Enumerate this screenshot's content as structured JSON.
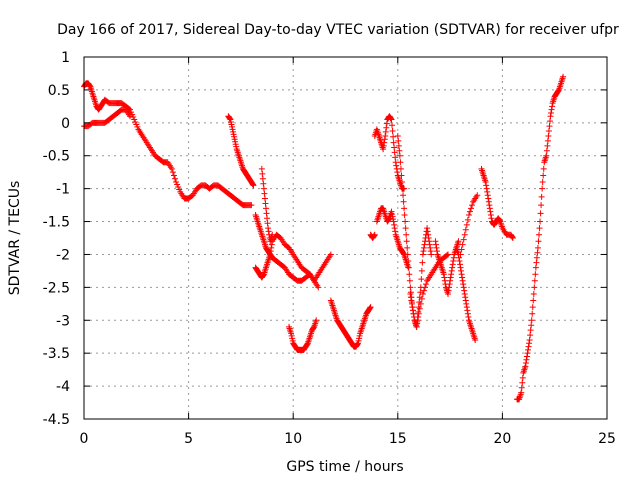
{
  "chart_data": {
    "type": "scatter",
    "title": "Day 166 of 2017, Sidereal Day-to-day VTEC variation (SDTVAR) for receiver ufpr",
    "xlabel": "GPS time / hours",
    "ylabel": "SDTVAR / TECUs",
    "xlim": [
      0,
      25
    ],
    "ylim": [
      -4.5,
      1
    ],
    "x_ticks": [
      "0",
      "5",
      "10",
      "15",
      "20",
      "25"
    ],
    "y_ticks": [
      "1",
      "0.5",
      "0",
      "-0.5",
      "-1",
      "-1.5",
      "-2",
      "-2.5",
      "-3",
      "-3.5",
      "-4",
      "-4.5"
    ],
    "grid": true,
    "marker": "plus",
    "color": "#ff0000",
    "series": [
      {
        "x": [
          0.0,
          0.1,
          0.2,
          0.3,
          0.4,
          0.5,
          0.6,
          0.7,
          0.8,
          0.9,
          1.0,
          1.2,
          1.4,
          1.6,
          1.8,
          2.0,
          2.2,
          2.4,
          2.6,
          2.8,
          3.0,
          3.2,
          3.4,
          3.6,
          3.8,
          4.0,
          4.2,
          4.4,
          4.6,
          4.8,
          5.0,
          5.2,
          5.4,
          5.6,
          5.8,
          6.0,
          6.2,
          6.4,
          6.6,
          6.8,
          7.0,
          7.2,
          7.4,
          7.6,
          7.8,
          8.0
        ],
        "y": [
          0.55,
          0.6,
          0.6,
          0.55,
          0.45,
          0.35,
          0.25,
          0.2,
          0.25,
          0.3,
          0.35,
          0.3,
          0.3,
          0.3,
          0.3,
          0.25,
          0.2,
          0.05,
          -0.1,
          -0.2,
          -0.3,
          -0.4,
          -0.5,
          -0.55,
          -0.6,
          -0.6,
          -0.7,
          -0.9,
          -1.05,
          -1.15,
          -1.15,
          -1.1,
          -1.0,
          -0.95,
          -0.95,
          -1.0,
          -0.95,
          -0.95,
          -1.0,
          -1.05,
          -1.1,
          -1.15,
          -1.2,
          -1.25,
          -1.25,
          -1.25
        ]
      },
      {
        "x": [
          0.0,
          0.2,
          0.4,
          0.6,
          0.8,
          1.0,
          1.2,
          1.4,
          1.6,
          1.8,
          2.0,
          2.2
        ],
        "y": [
          -0.05,
          -0.05,
          0.0,
          0.0,
          0.0,
          0.0,
          0.05,
          0.1,
          0.15,
          0.2,
          0.2,
          0.1
        ]
      },
      {
        "x": [
          6.9,
          7.0,
          7.1,
          7.2,
          7.3,
          7.4,
          7.5,
          7.6,
          7.7,
          7.8,
          7.9,
          8.0,
          8.1
        ],
        "y": [
          0.1,
          0.05,
          -0.1,
          -0.25,
          -0.4,
          -0.5,
          -0.6,
          -0.7,
          -0.75,
          -0.8,
          -0.85,
          -0.9,
          -0.95
        ]
      },
      {
        "x": [
          8.2,
          8.3,
          8.4,
          8.5,
          8.6,
          8.7,
          8.8,
          8.9,
          9.0,
          9.2,
          9.4,
          9.6,
          9.8,
          10.0,
          10.2,
          10.4,
          10.6,
          10.8,
          11.0,
          11.2
        ],
        "y": [
          -1.4,
          -1.5,
          -1.6,
          -1.7,
          -1.8,
          -1.9,
          -1.95,
          -2.0,
          -2.05,
          -2.1,
          -2.15,
          -2.2,
          -2.3,
          -2.35,
          -2.4,
          -2.4,
          -2.35,
          -2.3,
          -2.4,
          -2.5
        ]
      },
      {
        "x": [
          8.2,
          8.3,
          8.4,
          8.5,
          8.6,
          8.7,
          8.8,
          8.9,
          9.0,
          9.2,
          9.4,
          9.6,
          9.8,
          10.0,
          10.2,
          10.4,
          10.6,
          10.8,
          11.0,
          11.2,
          11.4,
          11.6,
          11.8
        ],
        "y": [
          -2.2,
          -2.25,
          -2.3,
          -2.35,
          -2.3,
          -2.2,
          -2.1,
          -2.0,
          -1.8,
          -1.7,
          -1.75,
          -1.85,
          -1.9,
          -2.0,
          -2.1,
          -2.2,
          -2.25,
          -2.3,
          -2.4,
          -2.3,
          -2.2,
          -2.1,
          -2.0
        ]
      },
      {
        "x": [
          8.5,
          8.6,
          8.7,
          8.8,
          8.9,
          9.0
        ],
        "y": [
          -0.7,
          -1.0,
          -1.3,
          -1.6,
          -1.8,
          -1.7
        ]
      },
      {
        "x": [
          9.8,
          9.9,
          10.0,
          10.1,
          10.2,
          10.3,
          10.4,
          10.5,
          10.6,
          10.7,
          10.8,
          10.9,
          11.0,
          11.1
        ],
        "y": [
          -3.1,
          -3.2,
          -3.35,
          -3.4,
          -3.45,
          -3.45,
          -3.45,
          -3.45,
          -3.4,
          -3.35,
          -3.25,
          -3.15,
          -3.1,
          -3.0
        ]
      },
      {
        "x": [
          11.8,
          11.9,
          12.0,
          12.1,
          12.2,
          12.3,
          12.4,
          12.5,
          12.6,
          12.7,
          12.8,
          12.9,
          13.0,
          13.1,
          13.2,
          13.3,
          13.4,
          13.5,
          13.6,
          13.7
        ],
        "y": [
          -2.7,
          -2.8,
          -2.9,
          -3.0,
          -3.05,
          -3.1,
          -3.15,
          -3.2,
          -3.25,
          -3.3,
          -3.35,
          -3.4,
          -3.4,
          -3.35,
          -3.2,
          -3.1,
          -3.0,
          -2.9,
          -2.85,
          -2.8
        ]
      },
      {
        "x": [
          13.7,
          13.8,
          13.9
        ],
        "y": [
          -1.7,
          -1.75,
          -1.7
        ]
      },
      {
        "x": [
          13.9,
          14.0,
          14.1,
          14.2,
          14.3,
          14.4,
          14.5,
          14.6,
          14.7,
          14.8,
          14.9,
          15.0,
          15.1,
          15.2,
          15.3
        ],
        "y": [
          -0.2,
          -0.1,
          -0.2,
          -0.3,
          -0.4,
          -0.2,
          0.05,
          0.1,
          0.05,
          -0.3,
          -0.6,
          -0.8,
          -0.9,
          -1.0,
          -1.0
        ]
      },
      {
        "x": [
          14.0,
          14.1,
          14.2,
          14.3,
          14.4,
          14.5,
          14.6,
          14.7,
          14.8,
          14.9,
          15.0,
          15.1,
          15.2,
          15.3,
          15.4,
          15.5
        ],
        "y": [
          -1.5,
          -1.4,
          -1.3,
          -1.3,
          -1.4,
          -1.5,
          -1.45,
          -1.35,
          -1.5,
          -1.7,
          -1.8,
          -1.9,
          -1.95,
          -2.0,
          -2.1,
          -2.2
        ]
      },
      {
        "x": [
          15.0,
          15.1,
          15.2,
          15.3,
          15.4,
          15.5,
          15.6,
          15.7,
          15.8,
          15.9,
          16.0,
          16.1,
          16.2,
          16.3,
          16.4,
          16.5,
          16.6
        ],
        "y": [
          -0.2,
          -0.5,
          -0.9,
          -1.3,
          -1.7,
          -2.1,
          -2.5,
          -2.8,
          -3.0,
          -3.1,
          -2.8,
          -2.5,
          -2.0,
          -1.8,
          -1.6,
          -1.8,
          -2.0
        ]
      },
      {
        "x": [
          15.6,
          15.7,
          15.8,
          15.9,
          16.0,
          16.2,
          16.4,
          16.6,
          16.8,
          17.0,
          17.2,
          17.4
        ],
        "y": [
          -2.6,
          -2.8,
          -3.0,
          -3.1,
          -2.9,
          -2.6,
          -2.4,
          -2.3,
          -2.2,
          -2.1,
          -2.05,
          -2.0
        ]
      },
      {
        "x": [
          16.8,
          16.9,
          17.0,
          17.1,
          17.2,
          17.3,
          17.4,
          17.5,
          17.6,
          17.7,
          17.8,
          17.9
        ],
        "y": [
          -1.8,
          -2.0,
          -2.1,
          -2.2,
          -2.3,
          -2.5,
          -2.6,
          -2.4,
          -2.2,
          -2.0,
          -1.9,
          -1.8
        ]
      },
      {
        "x": [
          17.8,
          17.9,
          18.0,
          18.1,
          18.2,
          18.3,
          18.4,
          18.5,
          18.6,
          18.7
        ],
        "y": [
          -1.9,
          -2.0,
          -2.2,
          -2.4,
          -2.6,
          -2.8,
          -3.0,
          -3.1,
          -3.2,
          -3.3
        ]
      },
      {
        "x": [
          18.0,
          18.2,
          18.4,
          18.6,
          18.8
        ],
        "y": [
          -2.0,
          -1.7,
          -1.4,
          -1.2,
          -1.1
        ]
      },
      {
        "x": [
          19.0,
          19.1,
          19.2,
          19.3,
          19.4,
          19.5,
          19.6,
          19.7,
          19.8,
          19.9,
          20.0,
          20.2,
          20.4,
          20.5
        ],
        "y": [
          -0.7,
          -0.8,
          -0.9,
          -1.1,
          -1.3,
          -1.5,
          -1.55,
          -1.5,
          -1.45,
          -1.5,
          -1.6,
          -1.7,
          -1.7,
          -1.75
        ]
      },
      {
        "x": [
          20.7,
          20.8,
          20.9,
          21.0,
          21.1,
          21.2,
          21.3,
          21.4,
          21.5,
          21.6,
          21.7,
          21.8,
          21.9,
          22.0,
          22.1,
          22.2,
          22.3,
          22.4,
          22.5,
          22.6,
          22.7,
          22.8,
          22.9
        ],
        "y": [
          -4.2,
          -4.2,
          -4.1,
          -3.8,
          -3.7,
          -3.5,
          -3.3,
          -3.0,
          -2.6,
          -2.2,
          -1.9,
          -1.5,
          -1.0,
          -0.6,
          -0.5,
          -0.2,
          0.1,
          0.3,
          0.4,
          0.45,
          0.5,
          0.6,
          0.7
        ]
      }
    ]
  }
}
